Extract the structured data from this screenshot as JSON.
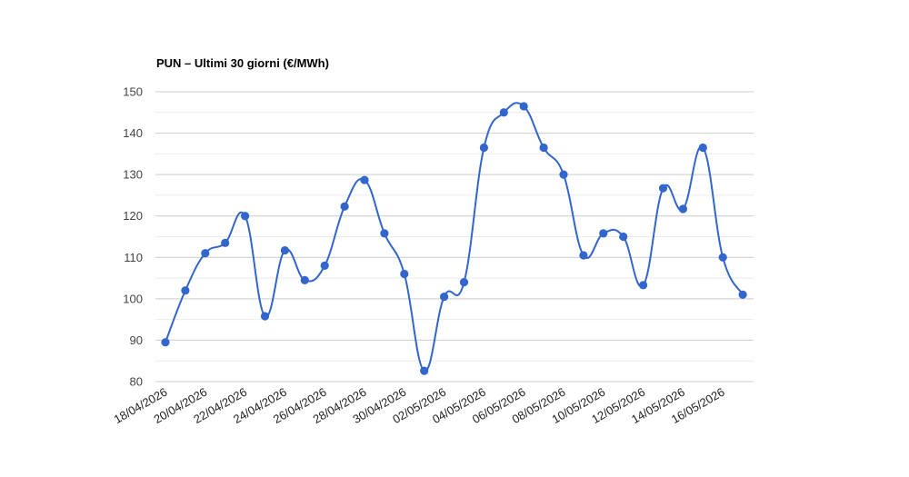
{
  "chart_data": {
    "type": "line",
    "title": "PUN – Ultimi 30 giorni (€/MWh)",
    "xlabel": "",
    "ylabel": "",
    "ylim": [
      80,
      150
    ],
    "yticks": [
      80,
      90,
      100,
      110,
      120,
      130,
      140,
      150
    ],
    "grid": true,
    "legend": "none",
    "smooth": true,
    "color": "#3366cc",
    "grid_color": "#cccccc",
    "minor_grid_color": "#ebebeb",
    "x": [
      "18/04/2026",
      "19/04/2026",
      "20/04/2026",
      "21/04/2026",
      "22/04/2026",
      "23/04/2026",
      "24/04/2026",
      "25/04/2026",
      "26/04/2026",
      "27/04/2026",
      "28/04/2026",
      "29/04/2026",
      "30/04/2026",
      "01/05/2026",
      "02/05/2026",
      "03/05/2026",
      "04/05/2026",
      "05/05/2026",
      "06/05/2026",
      "07/05/2026",
      "08/05/2026",
      "09/05/2026",
      "10/05/2026",
      "11/05/2026",
      "12/05/2026",
      "13/05/2026",
      "14/05/2026",
      "15/05/2026",
      "16/05/2026",
      "17/05/2026"
    ],
    "xtick_labels": [
      "18/04/2026",
      "20/04/2026",
      "22/04/2026",
      "24/04/2026",
      "26/04/2026",
      "28/04/2026",
      "30/04/2026",
      "02/05/2026",
      "04/05/2026",
      "06/05/2026",
      "08/05/2026",
      "10/05/2026",
      "12/05/2026",
      "14/05/2026",
      "16/05/2026"
    ],
    "values": [
      89.5,
      102,
      111,
      113.5,
      120,
      95.8,
      111.7,
      104.5,
      108,
      122.3,
      128.7,
      115.8,
      106,
      82.6,
      100.5,
      104,
      136.5,
      145,
      146.5,
      136.5,
      130,
      110.5,
      115.8,
      115,
      103.3,
      126.7,
      121.7,
      136.5,
      110,
      101
    ]
  }
}
